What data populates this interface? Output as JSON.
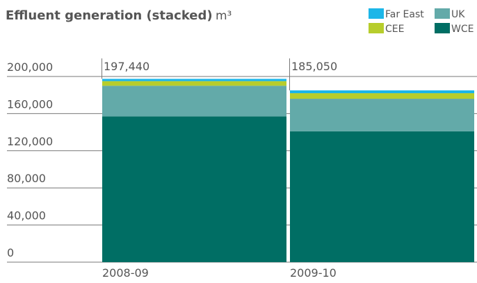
{
  "chart_data": {
    "type": "stacked-bar",
    "title": "Effluent generation (stacked)",
    "unit": "m³",
    "categories": [
      "2008-09",
      "2009-10"
    ],
    "series": [
      {
        "name": "WCE",
        "color": "#006e64",
        "values": [
          157000,
          141000
        ]
      },
      {
        "name": "UK",
        "color": "#63aaa9",
        "values": [
          33000,
          35000
        ]
      },
      {
        "name": "CEE",
        "color": "#b7cd2c",
        "values": [
          5000,
          6000
        ]
      },
      {
        "name": "Far East",
        "color": "#1cb6e8",
        "values": [
          2440,
          3050
        ]
      }
    ],
    "totals": [
      197440,
      185050
    ],
    "total_labels": [
      "197,440",
      "185,050"
    ],
    "ylim": [
      0,
      200000
    ],
    "yticks": [
      0,
      {
        "value": 40000,
        "label": "40,000"
      },
      {
        "value": 80000,
        "label": "80,000"
      },
      {
        "value": 120000,
        "label": "120,000"
      },
      {
        "value": 160000,
        "label": "160,000"
      },
      {
        "value": 200000,
        "label": "200,000"
      }
    ],
    "grid": true
  }
}
